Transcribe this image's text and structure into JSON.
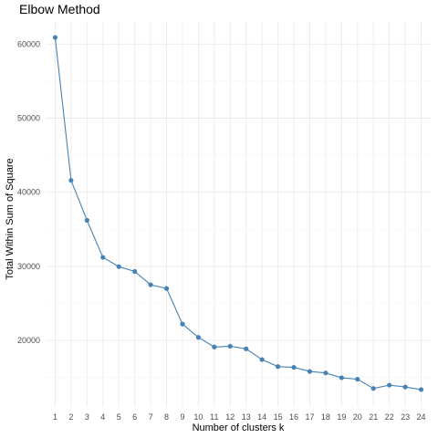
{
  "chart_data": {
    "type": "line",
    "title": "Elbow Method",
    "xlabel": "Number of clusters k",
    "ylabel": "Total Within Sum of Square",
    "x": [
      1,
      2,
      3,
      4,
      5,
      6,
      7,
      8,
      9,
      10,
      11,
      12,
      13,
      14,
      15,
      16,
      17,
      18,
      19,
      20,
      21,
      22,
      23,
      24
    ],
    "series": [
      {
        "values": [
          60900,
          41600,
          36200,
          31200,
          29950,
          29300,
          27500,
          27000,
          22200,
          20400,
          19100,
          19200,
          18850,
          17400,
          16450,
          16350,
          15800,
          15600,
          14950,
          14750,
          13500,
          13950,
          13700,
          13350
        ]
      }
    ],
    "y_ticks": [
      20000,
      30000,
      40000,
      50000,
      60000
    ],
    "y_tick_labels": [
      "20000",
      "30000",
      "40000",
      "50000",
      "60000"
    ],
    "ylim": [
      11000,
      63000
    ],
    "xlim": [
      0.4,
      24.6
    ],
    "grid": true,
    "legend": "none",
    "colors": {
      "line": "#4682b4",
      "point": "#4682b4"
    }
  }
}
